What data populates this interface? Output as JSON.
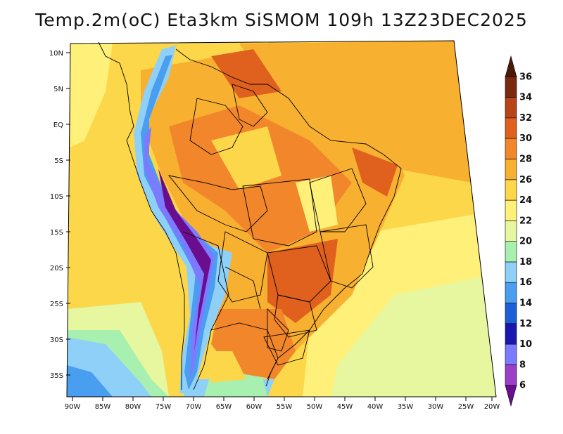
{
  "title": "Temp.2m(oC) Eta3km SiSMOM 109h 13Z23DEC2025",
  "lat_labels": [
    "10N",
    "5N",
    "EQ",
    "5S",
    "10S",
    "15S",
    "20S",
    "25S",
    "30S",
    "35S"
  ],
  "lon_labels": [
    "90W",
    "85W",
    "80W",
    "75W",
    "70W",
    "65W",
    "60W",
    "55W",
    "50W",
    "45W",
    "40W",
    "35W",
    "30W",
    "25W",
    "20W"
  ],
  "colorbar": {
    "levels": [
      "6",
      "8",
      "10",
      "12",
      "14",
      "16",
      "18",
      "20",
      "22",
      "24",
      "26",
      "28",
      "30",
      "32",
      "34",
      "36"
    ],
    "colors": [
      "#6a0d8f",
      "#9b3fc8",
      "#7b7bff",
      "#1818b0",
      "#1e5fd8",
      "#4a9ef0",
      "#8fd0f8",
      "#a8f0b0",
      "#e6f7a0",
      "#fff07a",
      "#fcd74a",
      "#f8b030",
      "#f2862a",
      "#e0601e",
      "#b8441a",
      "#7a2a0e",
      "#4a1a08"
    ]
  },
  "chart_data": {
    "type": "heatmap",
    "title": "Temp.2m(oC) Eta3km SiSMOM 109h 13Z23DEC2025",
    "variable": "2 m temperature",
    "units": "oC",
    "lon_range": [
      -90,
      -20
    ],
    "lat_range": [
      -37,
      11
    ],
    "levels": [
      6,
      8,
      10,
      12,
      14,
      16,
      18,
      20,
      22,
      24,
      26,
      28,
      30,
      32,
      34,
      36
    ]
  }
}
